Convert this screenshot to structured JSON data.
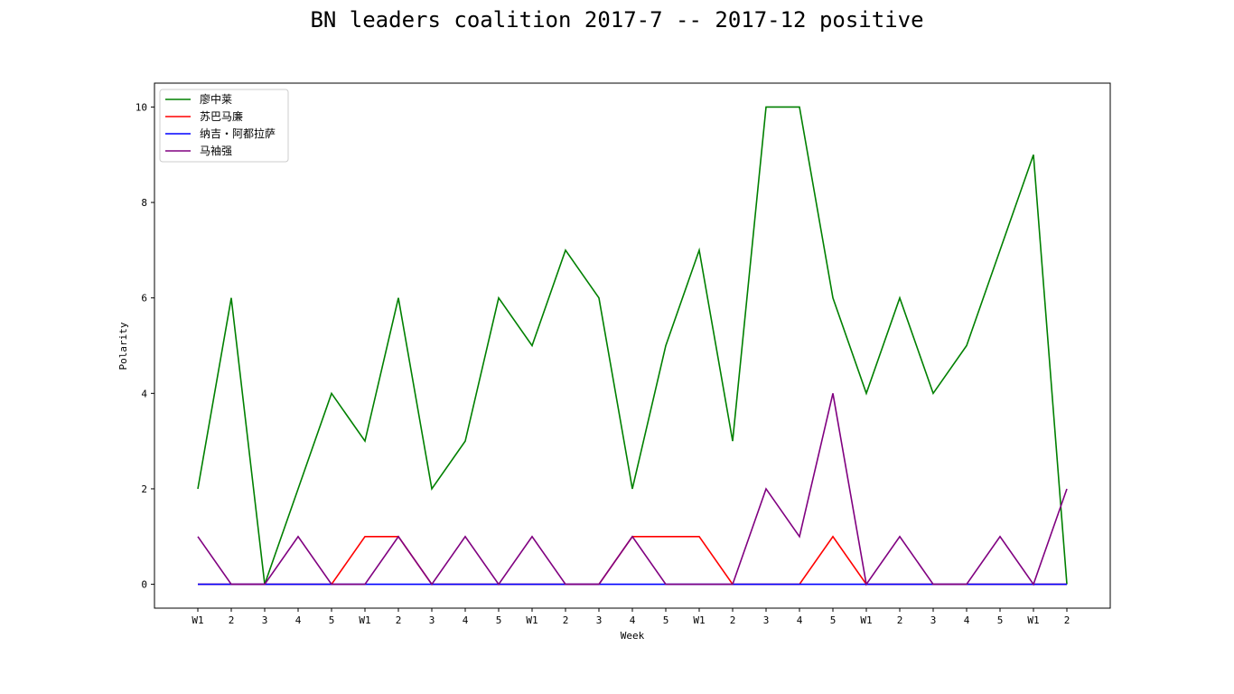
{
  "chart_data": {
    "type": "line",
    "title": "BN leaders coalition 2017-7 -- 2017-12 positive",
    "xlabel": "Week",
    "ylabel": "Polarity",
    "categories": [
      "W1",
      "2",
      "3",
      "4",
      "5",
      "W1",
      "2",
      "3",
      "4",
      "5",
      "W1",
      "2",
      "3",
      "4",
      "5",
      "W1",
      "2",
      "3",
      "4",
      "5",
      "W1",
      "2",
      "3",
      "4",
      "5",
      "W1",
      "2"
    ],
    "ylim": [
      -0.5,
      10.5
    ],
    "yticks": [
      0,
      2,
      4,
      6,
      8,
      10
    ],
    "grid": false,
    "legend_position": "top-left",
    "series": [
      {
        "name": "廖中莱",
        "color": "#008000",
        "values": [
          2,
          6,
          0,
          2,
          4,
          3,
          6,
          2,
          3,
          6,
          5,
          7,
          6,
          2,
          5,
          7,
          3,
          10,
          10,
          6,
          4,
          6,
          4,
          5,
          7,
          9,
          0
        ]
      },
      {
        "name": "苏巴马廉",
        "color": "#ff0000",
        "values": [
          0,
          0,
          0,
          0,
          0,
          1,
          1,
          0,
          0,
          0,
          0,
          0,
          0,
          1,
          1,
          1,
          0,
          0,
          0,
          1,
          0,
          0,
          0,
          0,
          0,
          0,
          0
        ]
      },
      {
        "name": "纳吉・阿都拉萨",
        "color": "#0000ff",
        "values": [
          0,
          0,
          0,
          0,
          0,
          0,
          0,
          0,
          0,
          0,
          0,
          0,
          0,
          0,
          0,
          0,
          0,
          0,
          0,
          0,
          0,
          0,
          0,
          0,
          0,
          0,
          0
        ]
      },
      {
        "name": "马袖强",
        "color": "#800080",
        "values": [
          1,
          0,
          0,
          1,
          0,
          0,
          1,
          0,
          1,
          0,
          1,
          0,
          0,
          1,
          0,
          0,
          0,
          2,
          1,
          4,
          0,
          1,
          0,
          0,
          1,
          0,
          2
        ]
      }
    ]
  }
}
